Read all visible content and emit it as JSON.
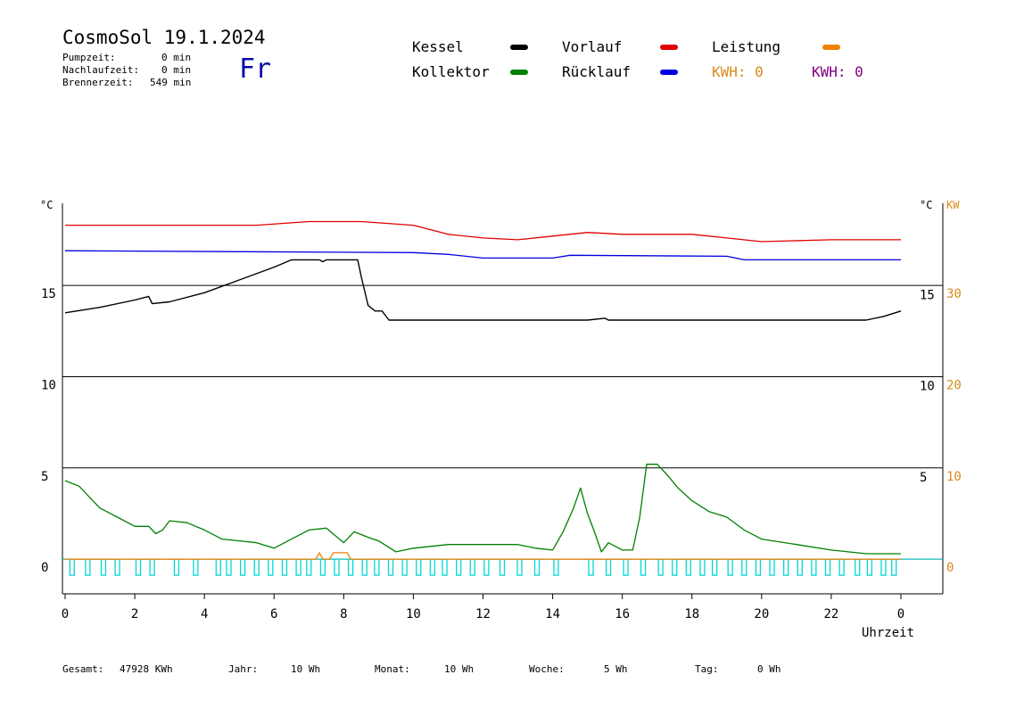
{
  "header": {
    "title": "CosmoSol 19.1.2024",
    "day": "Fr",
    "stats": [
      {
        "label": "Pumpzeit:",
        "value": "0 min"
      },
      {
        "label": "Nachlaufzeit:",
        "value": "0 min"
      },
      {
        "label": "Brennerzeit:",
        "value": "549 min"
      }
    ]
  },
  "legend": {
    "kessel": "Kessel",
    "kollektor": "Kollektor",
    "vorlauf": "Vorlauf",
    "ruecklauf": "Rücklauf",
    "leistung": "Leistung",
    "kwh1": "KWH: 0",
    "kwh2": "KWH: 0"
  },
  "colors": {
    "kessel": "#000000",
    "kollektor": "#008000",
    "vorlauf": "#e00000",
    "ruecklauf": "#0000e0",
    "leistung": "#f08000",
    "pump": "#00d8d8",
    "kwh2": "#800080"
  },
  "footer": {
    "gesamt_label": "Gesamt:",
    "gesamt_value": "47928 KWh",
    "jahr_label": "Jahr:",
    "jahr_value": "10 Wh",
    "monat_label": "Monat:",
    "monat_value": "10 Wh",
    "woche_label": "Woche:",
    "woche_value": "5 Wh",
    "tag_label": "Tag:",
    "tag_value": "0 Wh"
  },
  "chart_data": {
    "type": "line",
    "xlabel": "Uhrzeit",
    "x_ticks": [
      "0",
      "2",
      "4",
      "6",
      "8",
      "10",
      "12",
      "14",
      "16",
      "18",
      "20",
      "22",
      "0"
    ],
    "xlim": [
      0,
      24
    ],
    "left_unit": "°C",
    "right_unit_c": "°C",
    "right_unit_kw": "KW",
    "left_ticks": [
      {
        "value": 0,
        "label": "0"
      },
      {
        "value": 5,
        "label": "5"
      },
      {
        "value": 10,
        "label": "10"
      },
      {
        "value": 15,
        "label": "15"
      }
    ],
    "right_c_ticks": [
      {
        "value": 4.5,
        "label": "5"
      },
      {
        "value": 9.5,
        "label": "10"
      },
      {
        "value": 14.5,
        "label": "15"
      }
    ],
    "right_kw_ticks": [
      {
        "value": 0,
        "label": "0"
      },
      {
        "value": 5,
        "label": "10"
      },
      {
        "value": 10,
        "label": "20"
      },
      {
        "value": 15,
        "label": "30"
      }
    ],
    "ylim": [
      -1.9,
      19.5
    ],
    "grid_lines_y": [
      0,
      5,
      10,
      15
    ],
    "series": [
      {
        "key": "vorlauf",
        "name": "Vorlauf",
        "points": [
          [
            0,
            18.3
          ],
          [
            5.5,
            18.3
          ],
          [
            7,
            18.5
          ],
          [
            8.5,
            18.5
          ],
          [
            10,
            18.3
          ],
          [
            11,
            17.8
          ],
          [
            12,
            17.6
          ],
          [
            13,
            17.5
          ],
          [
            14,
            17.7
          ],
          [
            15,
            17.9
          ],
          [
            16,
            17.8
          ],
          [
            18,
            17.8
          ],
          [
            19,
            17.6
          ],
          [
            20,
            17.4
          ],
          [
            22,
            17.5
          ],
          [
            24,
            17.5
          ]
        ]
      },
      {
        "key": "ruecklauf",
        "name": "Rücklauf",
        "points": [
          [
            0,
            16.9
          ],
          [
            10,
            16.8
          ],
          [
            11,
            16.7
          ],
          [
            12,
            16.5
          ],
          [
            14,
            16.5
          ],
          [
            14.5,
            16.65
          ],
          [
            19,
            16.6
          ],
          [
            19.5,
            16.4
          ],
          [
            24,
            16.4
          ]
        ]
      },
      {
        "key": "kessel",
        "name": "Kessel",
        "points": [
          [
            0,
            13.5
          ],
          [
            1,
            13.8
          ],
          [
            2,
            14.2
          ],
          [
            2.4,
            14.4
          ],
          [
            2.5,
            14.0
          ],
          [
            3,
            14.1
          ],
          [
            4,
            14.6
          ],
          [
            5,
            15.3
          ],
          [
            6,
            16.0
          ],
          [
            6.5,
            16.4
          ],
          [
            7.3,
            16.4
          ],
          [
            7.4,
            16.3
          ],
          [
            7.5,
            16.4
          ],
          [
            8,
            16.4
          ],
          [
            8.4,
            16.4
          ],
          [
            8.5,
            15.5
          ],
          [
            8.7,
            13.9
          ],
          [
            8.9,
            13.6
          ],
          [
            9.1,
            13.6
          ],
          [
            9.3,
            13.1
          ],
          [
            15,
            13.1
          ],
          [
            15.5,
            13.2
          ],
          [
            15.6,
            13.1
          ],
          [
            23,
            13.1
          ],
          [
            23.5,
            13.3
          ],
          [
            24,
            13.6
          ]
        ]
      },
      {
        "key": "kollektor",
        "name": "Kollektor",
        "points": [
          [
            0,
            4.3
          ],
          [
            0.4,
            4.0
          ],
          [
            0.6,
            3.6
          ],
          [
            1,
            2.8
          ],
          [
            1.5,
            2.3
          ],
          [
            2,
            1.8
          ],
          [
            2.4,
            1.8
          ],
          [
            2.6,
            1.4
          ],
          [
            2.8,
            1.6
          ],
          [
            3,
            2.1
          ],
          [
            3.5,
            2.0
          ],
          [
            4,
            1.6
          ],
          [
            4.5,
            1.1
          ],
          [
            5,
            1.0
          ],
          [
            5.5,
            0.9
          ],
          [
            6,
            0.6
          ],
          [
            6.5,
            1.1
          ],
          [
            7,
            1.6
          ],
          [
            7.5,
            1.7
          ],
          [
            8,
            0.9
          ],
          [
            8.3,
            1.5
          ],
          [
            8.7,
            1.2
          ],
          [
            9,
            1.0
          ],
          [
            9.5,
            0.4
          ],
          [
            10,
            0.6
          ],
          [
            10.5,
            0.7
          ],
          [
            11,
            0.8
          ],
          [
            12,
            0.8
          ],
          [
            13,
            0.8
          ],
          [
            13.5,
            0.6
          ],
          [
            14,
            0.5
          ],
          [
            14.3,
            1.5
          ],
          [
            14.6,
            2.8
          ],
          [
            14.8,
            3.9
          ],
          [
            15,
            2.5
          ],
          [
            15.2,
            1.5
          ],
          [
            15.4,
            0.4
          ],
          [
            15.6,
            0.9
          ],
          [
            16,
            0.5
          ],
          [
            16.3,
            0.5
          ],
          [
            16.5,
            2.3
          ],
          [
            16.7,
            5.2
          ],
          [
            17,
            5.2
          ],
          [
            17.3,
            4.6
          ],
          [
            17.6,
            3.9
          ],
          [
            18,
            3.2
          ],
          [
            18.5,
            2.6
          ],
          [
            19,
            2.3
          ],
          [
            19.5,
            1.6
          ],
          [
            20,
            1.1
          ],
          [
            21,
            0.8
          ],
          [
            22,
            0.5
          ],
          [
            23,
            0.3
          ],
          [
            24,
            0.3
          ]
        ]
      },
      {
        "key": "leistung",
        "name": "Leistung",
        "points": [
          [
            0,
            0
          ],
          [
            7.2,
            0
          ],
          [
            7.3,
            0.35
          ],
          [
            7.4,
            0
          ],
          [
            7.6,
            0
          ],
          [
            7.7,
            0.35
          ],
          [
            8.1,
            0.35
          ],
          [
            8.2,
            0
          ],
          [
            24,
            0
          ]
        ]
      }
    ],
    "pump_bar_hours": [
      0.2,
      0.65,
      1.1,
      1.5,
      2.1,
      2.5,
      3.2,
      3.75,
      4.4,
      4.7,
      5.1,
      5.5,
      5.9,
      6.3,
      6.7,
      7.0,
      7.4,
      7.8,
      8.2,
      8.6,
      8.95,
      9.35,
      9.75,
      10.15,
      10.55,
      10.9,
      11.3,
      11.7,
      12.1,
      12.55,
      13.05,
      13.55,
      14.1,
      15.1,
      15.6,
      16.1,
      16.6,
      17.1,
      17.5,
      17.9,
      18.3,
      18.65,
      19.1,
      19.5,
      19.9,
      20.3,
      20.7,
      21.1,
      21.5,
      21.9,
      22.3,
      22.75,
      23.1,
      23.5,
      23.8
    ]
  }
}
